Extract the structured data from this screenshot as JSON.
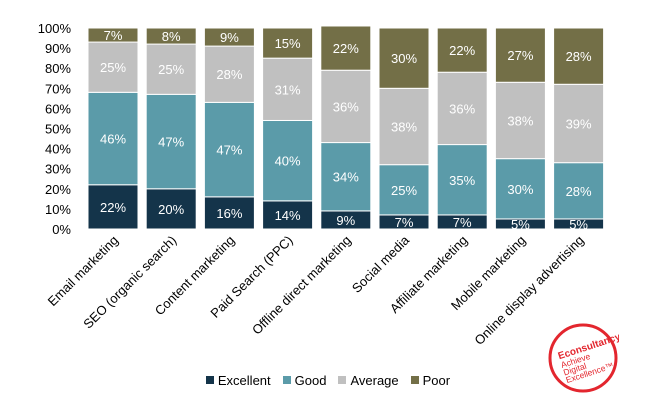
{
  "chart_data": {
    "type": "bar",
    "stacked": true,
    "categories": [
      "Email marketing",
      "SEO (organic search)",
      "Content marketing",
      "Paid Search (PPC)",
      "Offline direct marketing",
      "Social media",
      "Affiliate marketing",
      "Mobile marketing",
      "Online display advertising"
    ],
    "series": [
      {
        "name": "Excellent",
        "color": "#14344a",
        "values": [
          22,
          20,
          16,
          14,
          9,
          7,
          7,
          5,
          5
        ]
      },
      {
        "name": "Good",
        "color": "#5b9ba9",
        "values": [
          46,
          47,
          47,
          40,
          34,
          25,
          35,
          30,
          28
        ]
      },
      {
        "name": "Average",
        "color": "#c0c0c0",
        "values": [
          25,
          25,
          28,
          31,
          36,
          38,
          36,
          38,
          39
        ]
      },
      {
        "name": "Poor",
        "color": "#736f47",
        "values": [
          7,
          8,
          9,
          15,
          22,
          30,
          22,
          27,
          28
        ]
      }
    ],
    "data_labels": [
      [
        "22%",
        "20%",
        "16%",
        "14%",
        "9%",
        "7%",
        "7%",
        "5%",
        "5%"
      ],
      [
        "46%",
        "47%",
        "47%",
        "40%",
        "34%",
        "25%",
        "35%",
        "30%",
        "28%"
      ],
      [
        "25%",
        "25%",
        "28%",
        "31%",
        "36%",
        "38%",
        "36%",
        "38%",
        "39%"
      ],
      [
        "7%",
        "8%",
        "9%",
        "15%",
        "22%",
        "30%",
        "22%",
        "27%",
        "28%"
      ]
    ],
    "y_ticks": [
      "0%",
      "10%",
      "20%",
      "30%",
      "40%",
      "50%",
      "60%",
      "70%",
      "80%",
      "90%",
      "100%"
    ],
    "ylim": [
      0,
      100
    ],
    "title": "",
    "xlabel": "",
    "ylabel": "",
    "grid": false,
    "legend_position": "bottom-center"
  },
  "logo": {
    "lines": [
      "Econsultancy",
      "Achieve",
      "Digital",
      "Excellence™"
    ],
    "color": "#e3262e"
  }
}
